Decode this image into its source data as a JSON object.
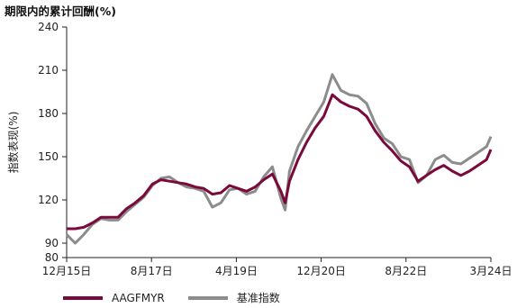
{
  "chart_data": {
    "type": "line",
    "title": "期限内的累计回酬(%)",
    "ylabel": "指数表现(%)",
    "ylim": [
      80,
      240
    ],
    "yticks": [
      80,
      90,
      120,
      150,
      180,
      210,
      240
    ],
    "xlabels": [
      "12月15日",
      "8月17日",
      "4月19日",
      "12月20日",
      "8月22日",
      "3月24日"
    ],
    "x": [
      "2015-12",
      "2016-02",
      "2016-04",
      "2016-06",
      "2016-08",
      "2016-10",
      "2016-12",
      "2017-02",
      "2017-04",
      "2017-06",
      "2017-08",
      "2017-10",
      "2017-12",
      "2018-02",
      "2018-04",
      "2018-06",
      "2018-08",
      "2018-10",
      "2018-12",
      "2019-02",
      "2019-04",
      "2019-06",
      "2019-08",
      "2019-10",
      "2019-12",
      "2020-02",
      "2020-03",
      "2020-04",
      "2020-06",
      "2020-08",
      "2020-10",
      "2020-12",
      "2021-02",
      "2021-04",
      "2021-06",
      "2021-08",
      "2021-10",
      "2021-12",
      "2022-02",
      "2022-04",
      "2022-06",
      "2022-08",
      "2022-10",
      "2022-12",
      "2023-02",
      "2023-04",
      "2023-06",
      "2023-08",
      "2023-10",
      "2023-12",
      "2024-02",
      "2024-03"
    ],
    "series": [
      {
        "name": "AAGFMYR",
        "color": "#7a0a3c",
        "values": [
          100,
          100,
          101,
          104,
          108,
          108,
          108,
          114,
          118,
          123,
          131,
          134,
          133,
          132,
          131,
          129,
          128,
          124,
          125,
          130,
          128,
          126,
          129,
          134,
          138,
          126,
          118,
          133,
          148,
          160,
          170,
          178,
          193,
          188,
          185,
          183,
          178,
          168,
          160,
          154,
          147,
          143,
          133,
          137,
          141,
          144,
          140,
          137,
          140,
          144,
          148,
          155
        ]
      },
      {
        "name": "基准指数",
        "color": "#8c8c8c",
        "values": [
          96,
          90,
          96,
          103,
          107,
          106,
          106,
          112,
          117,
          122,
          130,
          135,
          136,
          132,
          129,
          128,
          126,
          115,
          118,
          127,
          128,
          124,
          126,
          136,
          143,
          121,
          113,
          140,
          157,
          168,
          178,
          188,
          207,
          196,
          193,
          192,
          187,
          173,
          163,
          159,
          150,
          148,
          132,
          137,
          148,
          151,
          146,
          145,
          149,
          153,
          157,
          164
        ]
      }
    ],
    "legend_position": "bottom-left",
    "grid": false
  }
}
